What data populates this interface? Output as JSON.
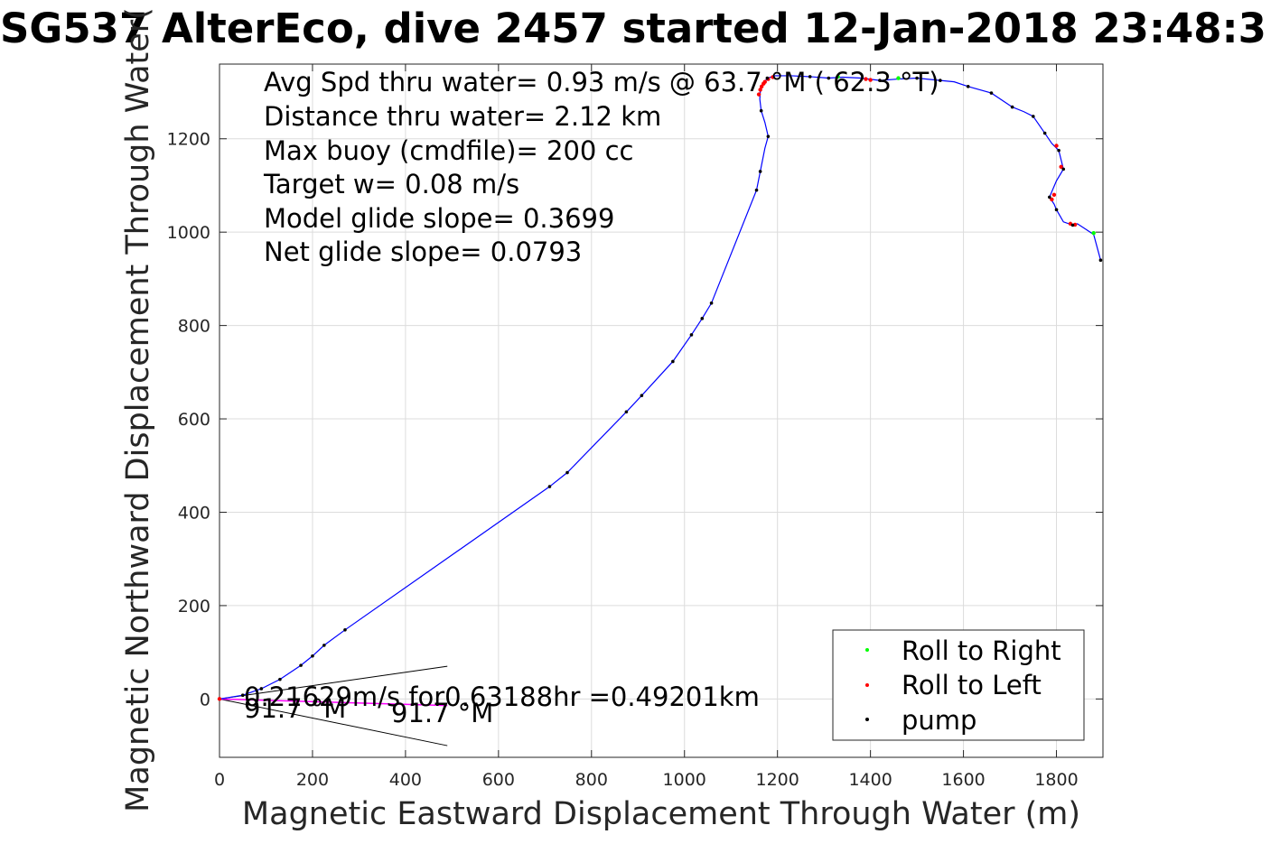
{
  "chart_data": {
    "type": "line",
    "title": "SG537 AlterEco, dive 2457 started 12-Jan-2018 23:48:3",
    "xlabel": "Magnetic Eastward Displacement Through Water (m)",
    "ylabel": "Magnetic Northward Displacement Through Water(",
    "xlim": [
      0,
      1900
    ],
    "ylim": [
      -125,
      1360
    ],
    "xticks": [
      "0",
      "200",
      "400",
      "600",
      "800",
      "1000",
      "1200",
      "1400",
      "1600",
      "1800"
    ],
    "yticks": [
      "0",
      "200",
      "400",
      "600",
      "800",
      "1000",
      "1200"
    ],
    "grid": true,
    "legend_position": "bottom-right",
    "annotations": [
      "Avg Spd thru water=  0.93 m/s @  63.7 °M ( 62.3 °T)",
      "Distance thru water=  2.12 km",
      "Max buoy (cmdfile)= 200 cc",
      "Target w= 0.08 m/s",
      "Model glide slope= 0.3699",
      "Net glide slope= 0.0793"
    ],
    "current_label": "0.21629m/s for0.63188hr =0.49201km",
    "heading_label_1": "91.7 °M",
    "heading_label_2": "91.7 °M",
    "series": [
      {
        "name": "track",
        "color": "#0000ff",
        "x": [
          0,
          50,
          90,
          130,
          175,
          200,
          225,
          270,
          710,
          748,
          875,
          908,
          975,
          1015,
          1038,
          1058,
          1155,
          1163,
          1173,
          1180,
          1173,
          1165,
          1162,
          1163,
          1168,
          1178,
          1195,
          1230,
          1270,
          1310,
          1340,
          1380,
          1420,
          1460,
          1500,
          1550,
          1580,
          1610,
          1660,
          1705,
          1730,
          1750,
          1775,
          1790,
          1805,
          1815,
          1800,
          1785,
          1795,
          1800,
          1815,
          1835,
          1845,
          1865,
          1880,
          1895
        ],
        "y": [
          0,
          8,
          22,
          42,
          72,
          92,
          115,
          148,
          455,
          485,
          615,
          650,
          723,
          780,
          815,
          848,
          1090,
          1130,
          1180,
          1205,
          1235,
          1260,
          1285,
          1300,
          1315,
          1330,
          1335,
          1335,
          1333,
          1330,
          1332,
          1330,
          1325,
          1328,
          1330,
          1325,
          1322,
          1312,
          1298,
          1268,
          1258,
          1248,
          1212,
          1190,
          1175,
          1135,
          1110,
          1075,
          1060,
          1048,
          1022,
          1015,
          1018,
          1005,
          995,
          940
        ]
      }
    ],
    "current_vector": {
      "x": [
        0,
        490
      ],
      "y": [
        0,
        -14
      ]
    },
    "uncertainty_cone": {
      "upper": [
        490,
        70
      ],
      "lower": [
        490,
        -100
      ]
    },
    "legend": [
      {
        "label": "Roll to Right",
        "color": "#00ff00"
      },
      {
        "label": "Roll to Left",
        "color": "#ff0000"
      },
      {
        "label": "pump",
        "color": "#000000"
      }
    ],
    "markers": {
      "pump_x": [
        50,
        90,
        130,
        175,
        200,
        225,
        270,
        710,
        748,
        875,
        908,
        975,
        1015,
        1038,
        1058,
        1155,
        1163,
        1180,
        1165,
        1178,
        1270,
        1310,
        1420,
        1500,
        1550,
        1610,
        1660,
        1705,
        1750,
        1775,
        1805,
        1815,
        1785,
        1800,
        1835,
        1895
      ],
      "pump_y": [
        8,
        22,
        42,
        72,
        92,
        115,
        148,
        455,
        485,
        615,
        650,
        723,
        780,
        815,
        848,
        1090,
        1130,
        1205,
        1260,
        1330,
        1333,
        1330,
        1325,
        1330,
        1325,
        1312,
        1298,
        1268,
        1248,
        1212,
        1175,
        1135,
        1075,
        1048,
        1015,
        940
      ],
      "left_x": [
        1160,
        1163,
        1166,
        1170,
        1173,
        1180,
        1190,
        1390,
        1400,
        1790,
        1795,
        1800,
        1810,
        1830,
        1840
      ],
      "left_y": [
        1295,
        1305,
        1312,
        1318,
        1322,
        1328,
        1332,
        1328,
        1326,
        1070,
        1080,
        1185,
        1140,
        1018,
        1016
      ],
      "right_x": [
        1330,
        1460,
        1880
      ],
      "right_y": [
        1333,
        1330,
        998
      ]
    }
  }
}
